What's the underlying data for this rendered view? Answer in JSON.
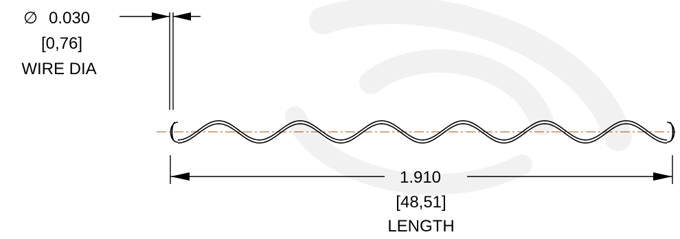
{
  "wire_dia": {
    "symbol": "∅",
    "value": "0.030",
    "metric": "[0,76]",
    "label": "WIRE DIA"
  },
  "length": {
    "value": "1.910",
    "metric": "[48,51]",
    "label": "LENGTH"
  },
  "spring": {
    "waves": 6
  },
  "colors": {
    "line": "#000000",
    "centerline": "#b5743f",
    "watermark": "#f1f1f1"
  }
}
